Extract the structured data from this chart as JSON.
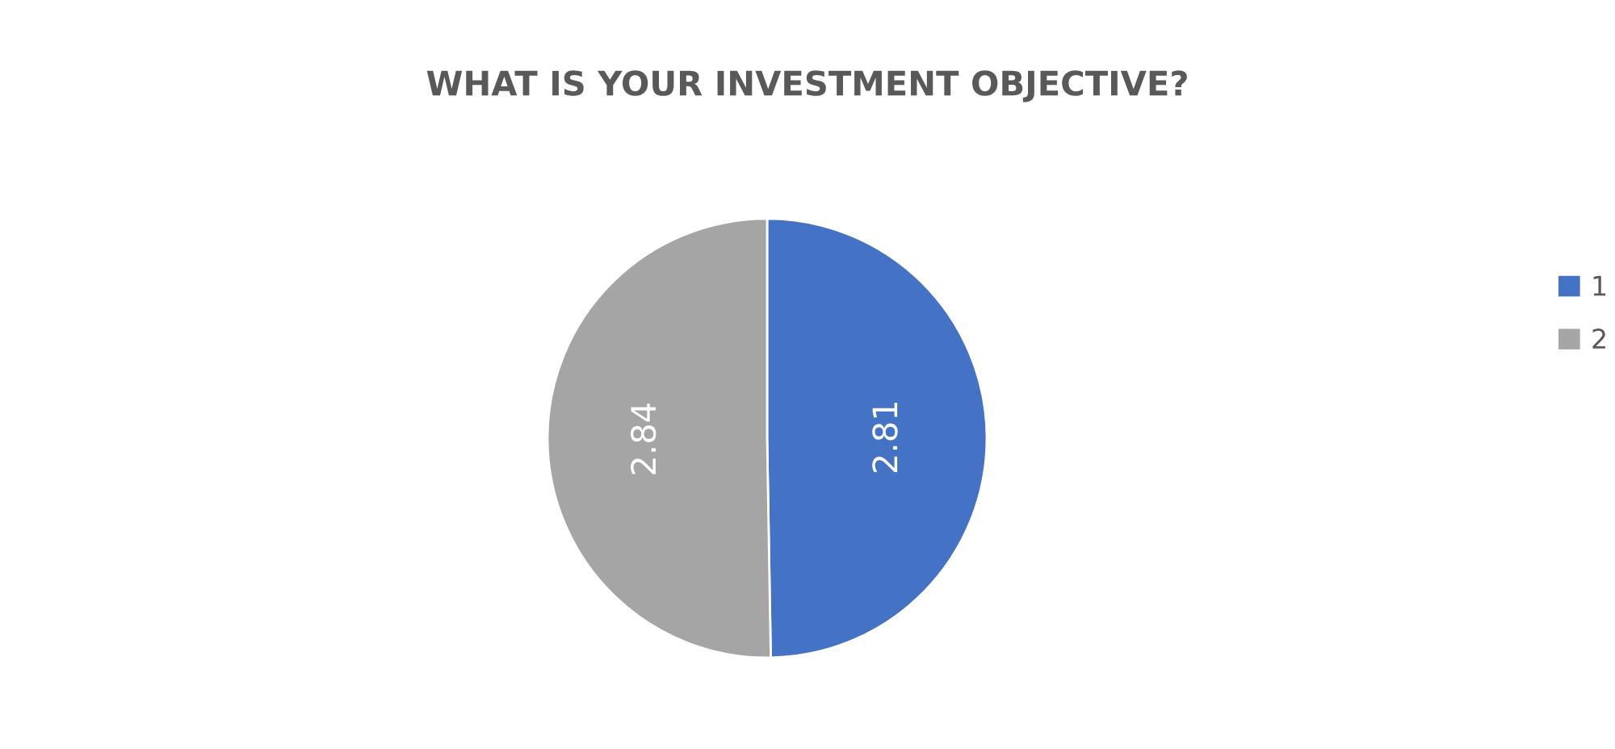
{
  "chart_data": {
    "type": "pie",
    "title": "WHAT IS YOUR INVESTMENT OBJECTIVE?",
    "categories": [
      "1",
      "2"
    ],
    "values": [
      2.81,
      2.84
    ],
    "colors": [
      "#4472c4",
      "#a5a5a5"
    ],
    "data_labels": true,
    "legend": "right"
  }
}
